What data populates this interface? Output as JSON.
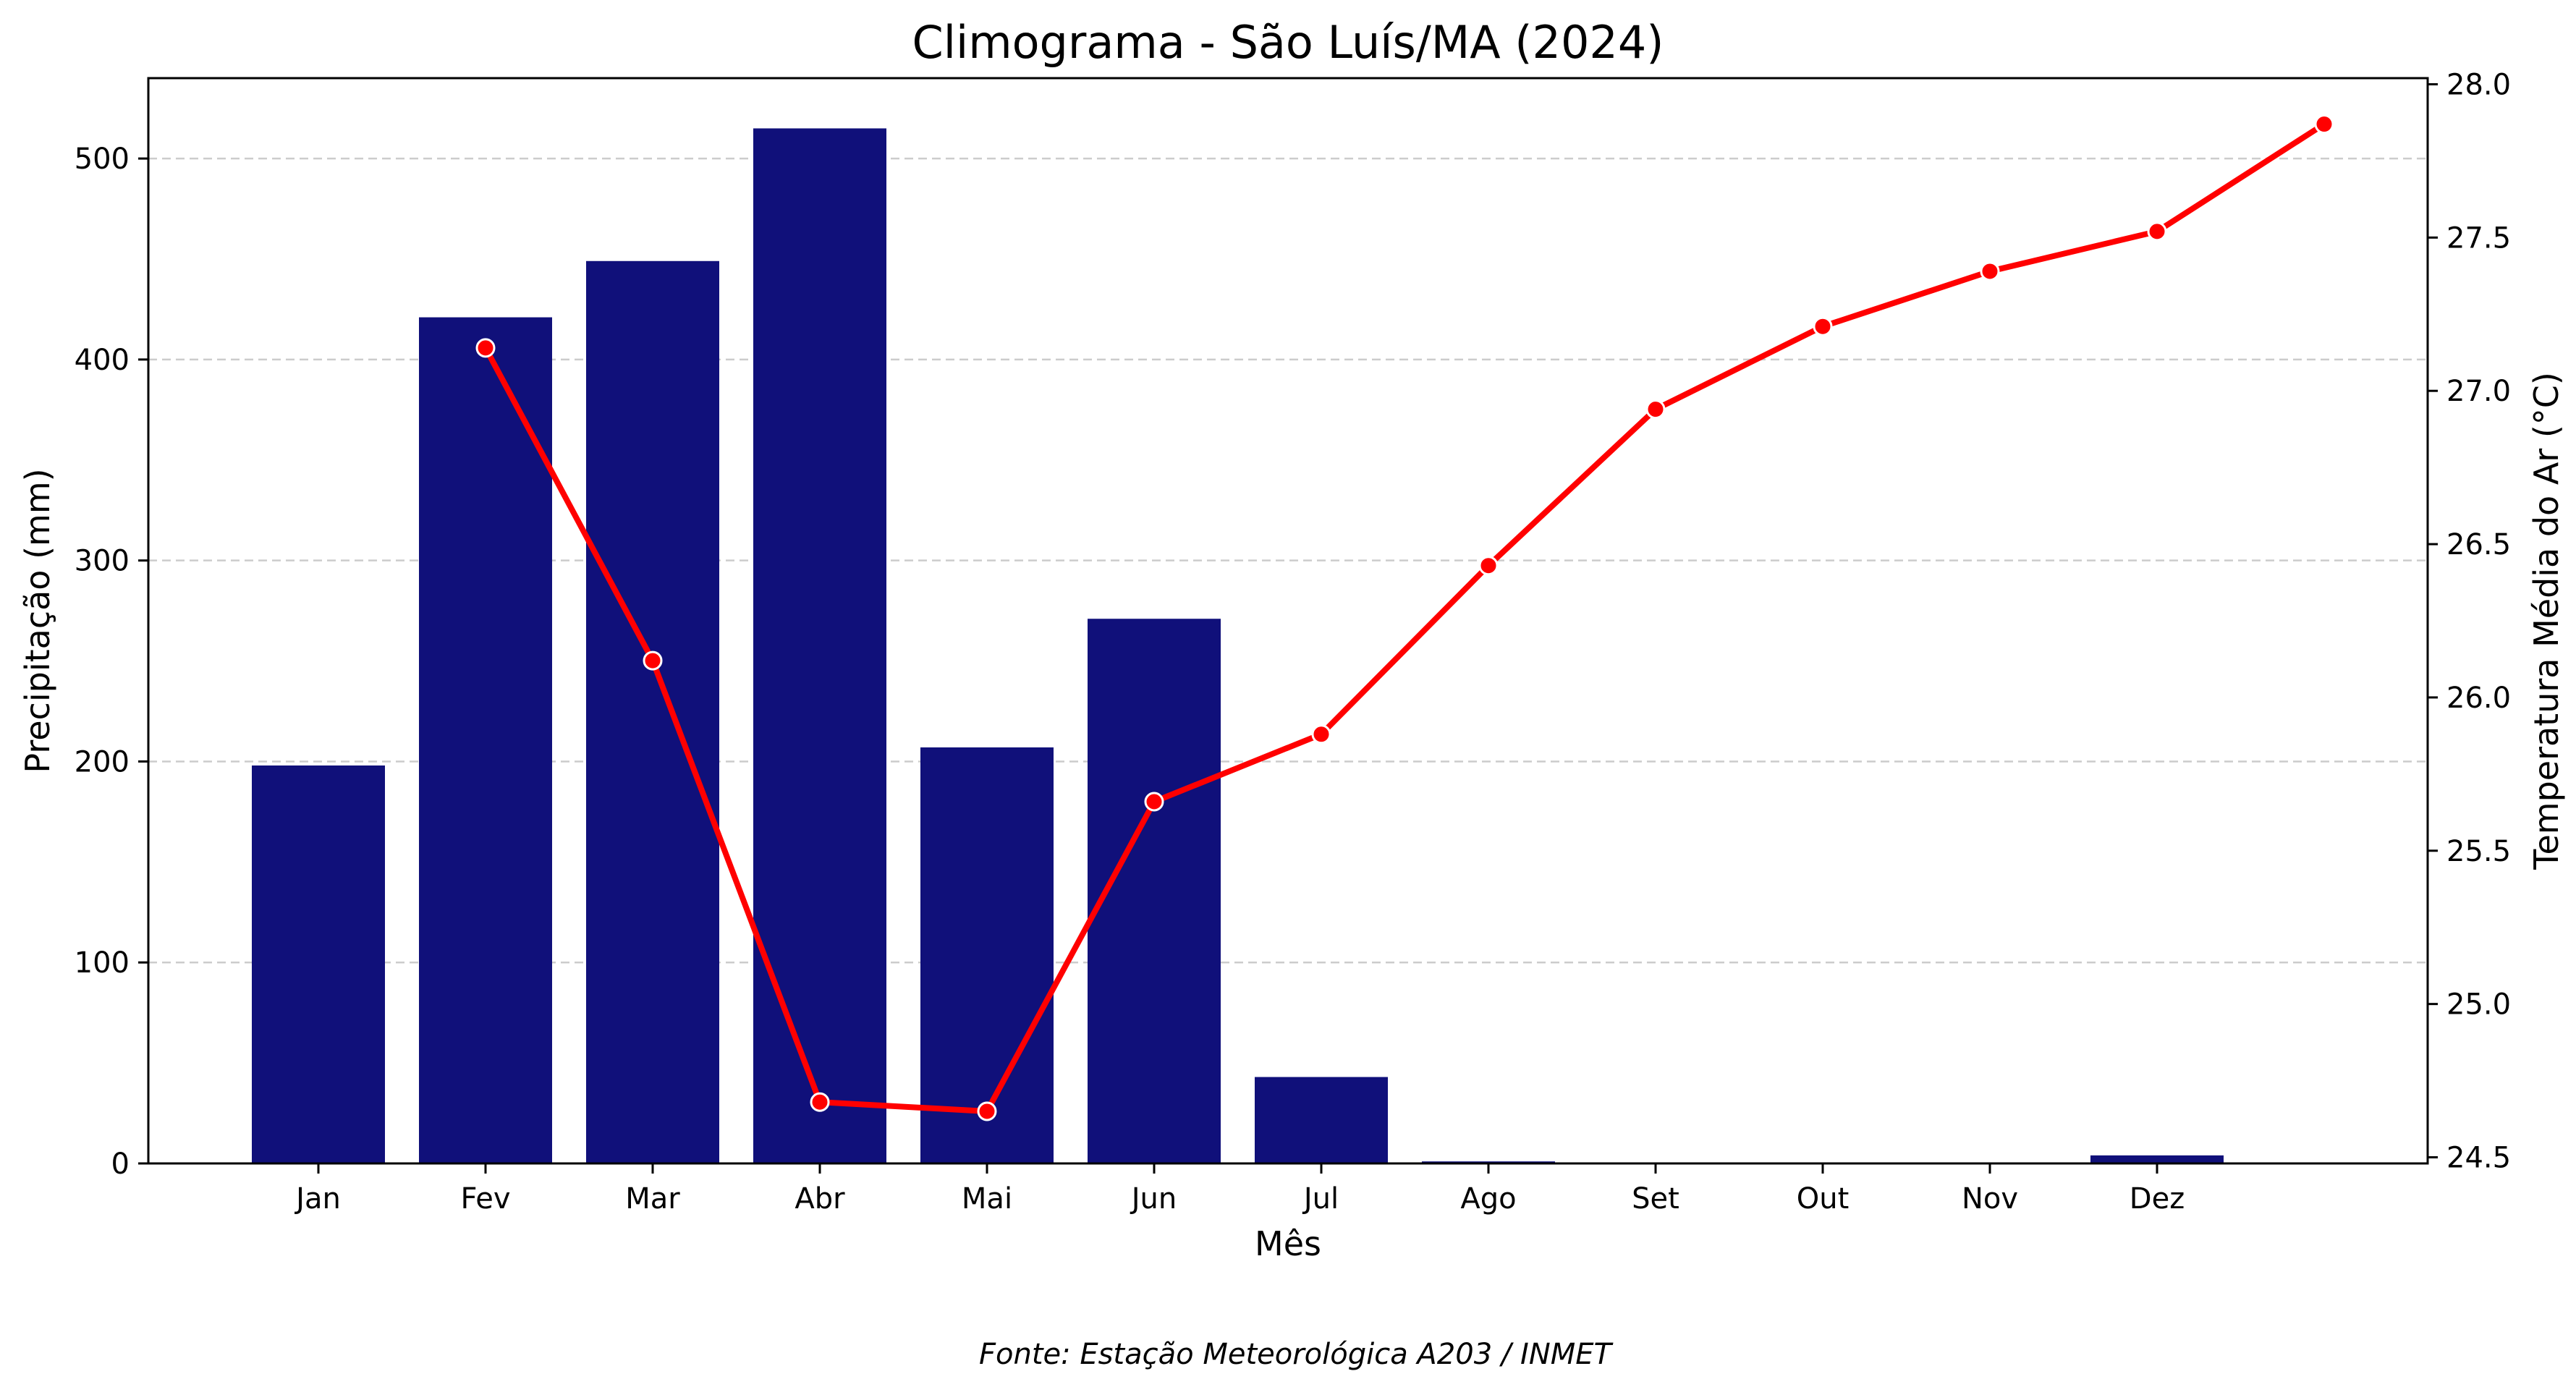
{
  "chart_data": {
    "type": "bar",
    "title": "Climograma - São Luís/MA (2024)",
    "xlabel": "Mês",
    "ylabel": "Precipitação (mm)",
    "y2label": "Temperatura Média do Ar (°C)",
    "source": "Fonte: Estação Meteorológica A203 / INMET",
    "categories": [
      "Jan",
      "Fev",
      "Mar",
      "Abr",
      "Mai",
      "Jun",
      "Jul",
      "Ago",
      "Set",
      "Out",
      "Nov",
      "Dez"
    ],
    "ylim": [
      0,
      540
    ],
    "y2lim": [
      24.48,
      28.02
    ],
    "yticks": [
      0,
      100,
      200,
      300,
      400,
      500
    ],
    "y2ticks": [
      24.5,
      25.0,
      25.5,
      26.0,
      26.5,
      27.0,
      27.5,
      28.0
    ],
    "grid": "horizontal dashed",
    "series": [
      {
        "name": "Precipitação (mm)",
        "type": "bar",
        "color": "#10107a",
        "values": [
          198,
          421,
          449,
          515,
          207,
          271,
          43,
          1,
          0,
          0,
          0,
          4
        ]
      },
      {
        "name": "Temperatura Média do Ar (°C)",
        "type": "line",
        "axis": "right",
        "color": "#ff0000",
        "x_index": [
          1,
          2,
          3,
          4,
          5,
          6,
          7,
          8,
          9,
          10,
          11,
          12
        ],
        "values": [
          27.14,
          26.12,
          24.68,
          24.65,
          25.66,
          25.88,
          26.43,
          26.94,
          27.21,
          27.39,
          27.52,
          27.87
        ]
      }
    ]
  }
}
